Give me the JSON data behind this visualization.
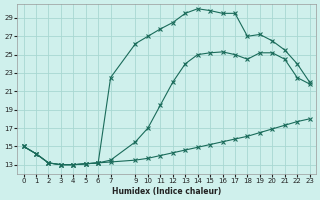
{
  "xlabel": "Humidex (Indice chaleur)",
  "bg_color": "#cff0ec",
  "grid_color": "#a8d8d2",
  "line_color": "#1a6b5a",
  "xlim": [
    -0.5,
    23.5
  ],
  "ylim": [
    12.0,
    30.5
  ],
  "yticks": [
    13,
    15,
    17,
    19,
    21,
    23,
    25,
    27,
    29
  ],
  "xticks": [
    0,
    1,
    2,
    3,
    4,
    5,
    6,
    7,
    9,
    10,
    11,
    12,
    13,
    14,
    15,
    16,
    17,
    18,
    19,
    20,
    21,
    22,
    23
  ],
  "line1_x": [
    0,
    1,
    2,
    3,
    4,
    5,
    6,
    7,
    9,
    10,
    11,
    12,
    13,
    14,
    15,
    16,
    17,
    18,
    19,
    20,
    21,
    22,
    23
  ],
  "line1_y": [
    15.0,
    14.2,
    13.2,
    13.0,
    13.0,
    13.1,
    13.2,
    13.3,
    13.5,
    13.7,
    14.0,
    14.3,
    14.6,
    14.9,
    15.2,
    15.5,
    15.8,
    16.1,
    16.5,
    16.9,
    17.3,
    17.7,
    18.0
  ],
  "line2_x": [
    0,
    1,
    2,
    3,
    4,
    5,
    6,
    7,
    9,
    10,
    11,
    12,
    13,
    14,
    15,
    16,
    17,
    18,
    19,
    20,
    21,
    22,
    23
  ],
  "line2_y": [
    15.0,
    14.2,
    13.2,
    13.0,
    13.0,
    13.1,
    13.2,
    13.5,
    15.5,
    17.0,
    19.5,
    22.0,
    24.0,
    25.0,
    25.2,
    25.3,
    25.0,
    24.5,
    25.2,
    25.2,
    24.5,
    22.5,
    21.8
  ],
  "line3_x": [
    0,
    1,
    2,
    3,
    4,
    5,
    6,
    7,
    9,
    10,
    11,
    12,
    13,
    14,
    15,
    16,
    17,
    18,
    19,
    20,
    21,
    22,
    23
  ],
  "line3_y": [
    15.0,
    14.2,
    13.2,
    13.0,
    13.0,
    13.1,
    13.2,
    22.5,
    26.2,
    27.0,
    27.8,
    28.5,
    29.5,
    30.0,
    29.8,
    29.5,
    29.5,
    27.0,
    27.2,
    26.5,
    25.5,
    24.0,
    22.0
  ]
}
